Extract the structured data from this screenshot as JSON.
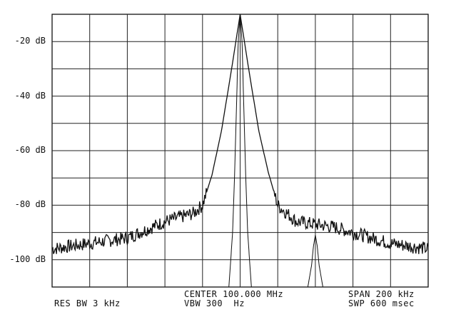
{
  "chart_data": {
    "type": "line",
    "title": "",
    "xlabel": "",
    "ylabel": "",
    "center_frequency_mhz": 100.0,
    "span_khz": 200,
    "x_unit": "kHz offset from center",
    "xlim": [
      -100,
      100
    ],
    "ylim": [
      -110,
      -10
    ],
    "y_ticks": [
      {
        "value": -20,
        "label": "-20 dB"
      },
      {
        "value": -40,
        "label": "-40 dB"
      },
      {
        "value": -60,
        "label": "-60 dB"
      },
      {
        "value": -80,
        "label": "-80 dB"
      },
      {
        "value": -100,
        "label": "-100 dB"
      }
    ],
    "grid": true,
    "grid_divisions": {
      "x": 10,
      "y": 10
    },
    "series": [
      {
        "key": "wide",
        "x": [
          -100,
          -90,
          -80,
          -70,
          -60,
          -50,
          -40,
          -30,
          -25,
          -20,
          -15,
          -10,
          -5,
          0,
          5,
          10,
          15,
          20,
          25,
          30,
          40,
          50,
          60,
          70,
          80,
          90,
          100
        ],
        "y": [
          -96,
          -95,
          -94,
          -93,
          -92,
          -89,
          -86,
          -84,
          -83,
          -80,
          -69,
          -53,
          -32,
          -10,
          -32,
          -53,
          -68,
          -80,
          -83,
          -86,
          -87,
          -88,
          -90,
          -92,
          -94,
          -95,
          -96
        ]
      },
      {
        "key": "narrow_carrier",
        "x": [
          -6,
          -4,
          -3,
          -2,
          -1,
          0,
          1,
          2,
          3,
          4,
          6
        ],
        "y": [
          -110,
          -90,
          -70,
          -45,
          -20,
          -10,
          -20,
          -45,
          -70,
          -90,
          -110
        ]
      },
      {
        "key": "narrow_small",
        "x": [
          36,
          38,
          39,
          40,
          41,
          42,
          44
        ],
        "y": [
          -110,
          -102,
          -95,
          -91,
          -95,
          -102,
          -110
        ]
      }
    ]
  },
  "annotations": {
    "res_bw": "RES BW 3 kHz",
    "center": "CENTER 100.000 MHz",
    "vbw": "VBW 300  Hz",
    "span": "SPAN 200 kHz",
    "swp": "SWP 600 msec"
  }
}
